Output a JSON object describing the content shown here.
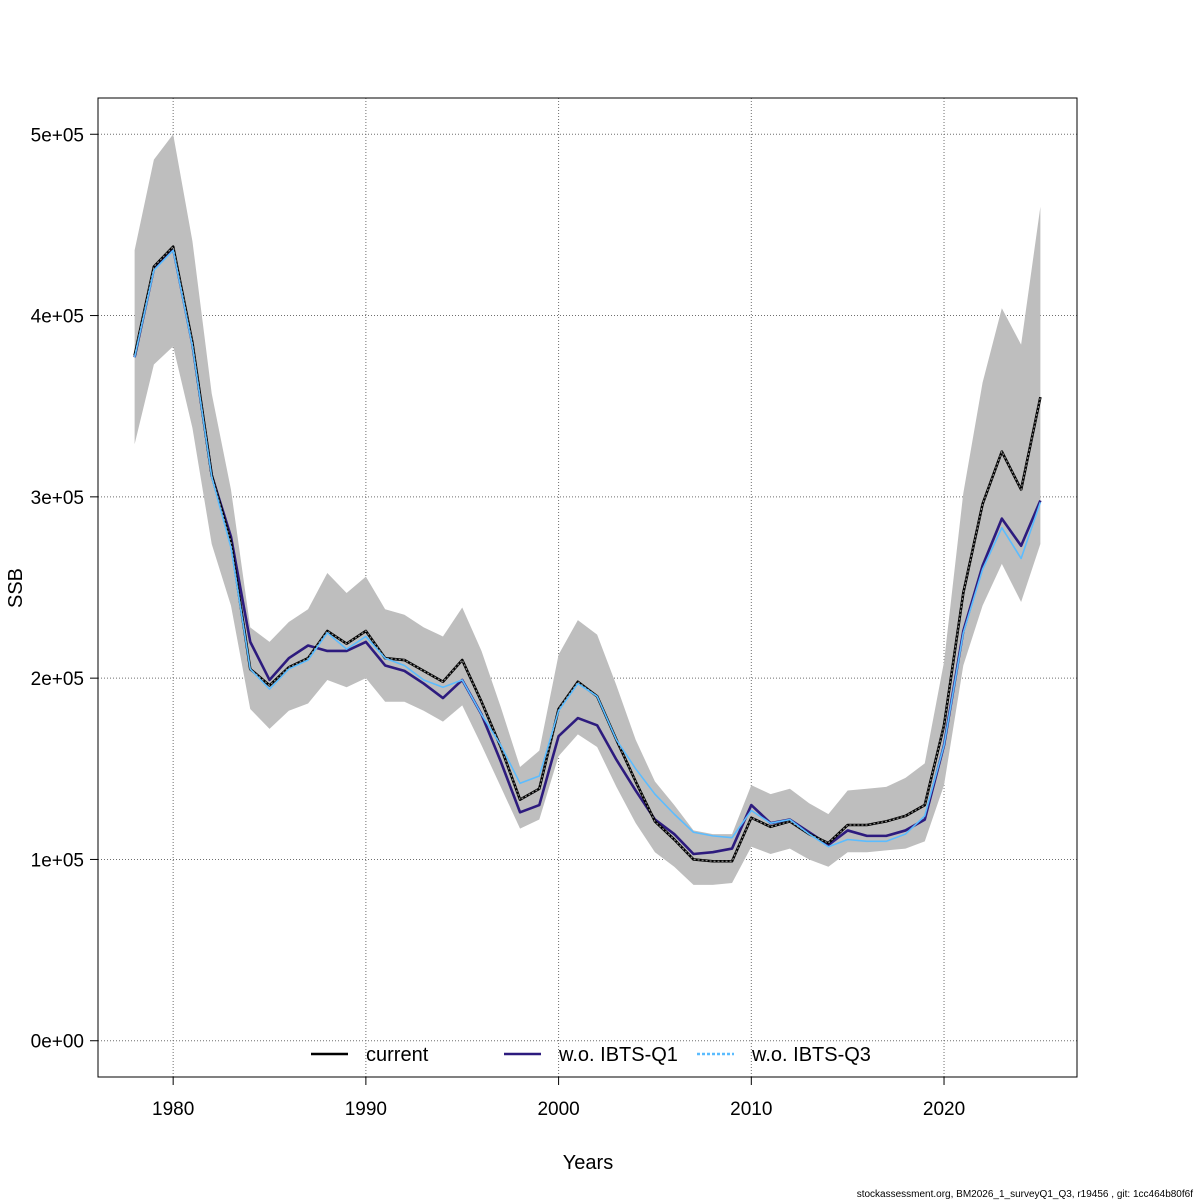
{
  "chart_data": {
    "type": "line",
    "xlabel": "Years",
    "ylabel": "SSB",
    "xlim": [
      1976.1,
      2026.9
    ],
    "ylim": [
      -20000,
      520000
    ],
    "x_ticks": [
      1980,
      1990,
      2000,
      2010,
      2020
    ],
    "x_tick_labels": [
      "1980",
      "1990",
      "2000",
      "2010",
      "2020"
    ],
    "y_ticks": [
      0,
      100000,
      200000,
      300000,
      400000,
      500000
    ],
    "y_tick_labels": [
      "0e+00",
      "1e+05",
      "2e+05",
      "3e+05",
      "4e+05",
      "5e+05"
    ],
    "grid": true,
    "legend_position": "bottom",
    "x": [
      1978,
      1979,
      1980,
      1981,
      1982,
      1983,
      1984,
      1985,
      1986,
      1987,
      1988,
      1989,
      1990,
      1991,
      1992,
      1993,
      1994,
      1995,
      1996,
      1997,
      1998,
      1999,
      2000,
      2001,
      2002,
      2003,
      2004,
      2005,
      2006,
      2007,
      2008,
      2009,
      2010,
      2011,
      2012,
      2013,
      2014,
      2015,
      2016,
      2017,
      2018,
      2019,
      2020,
      2021,
      2022,
      2023,
      2024,
      2025
    ],
    "confidence_band": {
      "color": "#bebebe",
      "lower": [
        329000,
        373000,
        383000,
        338000,
        274000,
        240000,
        183000,
        172000,
        182000,
        186000,
        199000,
        195000,
        200000,
        187000,
        187000,
        182000,
        176000,
        185000,
        163000,
        140000,
        117000,
        122000,
        157000,
        169000,
        162000,
        140000,
        120000,
        104000,
        96000,
        86000,
        86000,
        87000,
        107000,
        103000,
        106000,
        100000,
        96000,
        104000,
        104000,
        105000,
        106000,
        110000,
        141000,
        207000,
        240000,
        263000,
        242000,
        274000
      ],
      "upper": [
        436000,
        486000,
        500000,
        441000,
        357000,
        304000,
        228000,
        220000,
        231000,
        238000,
        258000,
        247000,
        256000,
        238000,
        235000,
        228000,
        223000,
        239000,
        215000,
        184000,
        151000,
        160000,
        213000,
        232000,
        224000,
        196000,
        166000,
        143000,
        130000,
        116000,
        114000,
        114000,
        141000,
        136000,
        139000,
        131000,
        125000,
        138000,
        139000,
        140000,
        145000,
        153000,
        209000,
        302000,
        363000,
        404000,
        384000,
        460000
      ]
    },
    "series": [
      {
        "name": "current",
        "color": "#000000",
        "values": [
          378000,
          427000,
          438000,
          385000,
          312000,
          275000,
          205000,
          196000,
          206000,
          211000,
          226000,
          219000,
          226000,
          211000,
          210000,
          204000,
          198000,
          210000,
          187000,
          162000,
          133000,
          139000,
          183000,
          198000,
          190000,
          166000,
          143000,
          121000,
          111000,
          100000,
          99000,
          99000,
          123000,
          118000,
          121000,
          114000,
          109000,
          119000,
          119000,
          121000,
          124000,
          130000,
          174000,
          247000,
          296000,
          325000,
          304000,
          355000
        ]
      },
      {
        "name": "w.o. IBTS-Q1",
        "color": "#2d1b7e",
        "values": [
          377000,
          426000,
          437000,
          384000,
          312000,
          278000,
          220000,
          199000,
          211000,
          218000,
          215000,
          215000,
          220000,
          207000,
          204000,
          197000,
          189000,
          199000,
          180000,
          154000,
          126000,
          130000,
          168000,
          178000,
          174000,
          155000,
          138000,
          122000,
          114000,
          103000,
          104000,
          106000,
          130000,
          120000,
          122000,
          115000,
          108000,
          116000,
          113000,
          113000,
          116000,
          122000,
          163000,
          226000,
          262000,
          288000,
          273000,
          298000
        ]
      },
      {
        "name": "w.o. IBTS-Q3",
        "color": "#5bbcff",
        "values": [
          377000,
          425000,
          436000,
          383000,
          311000,
          272000,
          205000,
          194000,
          205000,
          210000,
          225000,
          216000,
          223000,
          211000,
          207000,
          199000,
          195000,
          199000,
          180000,
          163000,
          142000,
          146000,
          182000,
          197000,
          190000,
          166000,
          150000,
          136000,
          125000,
          115000,
          113000,
          112000,
          127000,
          120000,
          122000,
          114000,
          107000,
          111000,
          110000,
          110000,
          114000,
          124000,
          163000,
          225000,
          260000,
          283000,
          266000,
          297000
        ]
      }
    ]
  },
  "legend": {
    "items": [
      {
        "label": "current",
        "color": "#000000",
        "style": "solid"
      },
      {
        "label": "w.o. IBTS-Q1",
        "color": "#2d1b7e",
        "style": "solid"
      },
      {
        "label": "w.o. IBTS-Q3",
        "color": "#5bbcff",
        "style": "dashed"
      }
    ]
  },
  "footer": "stockassessment.org, BM2026_1_surveyQ1_Q3, r19456 , git: 1cc464b80f6f"
}
